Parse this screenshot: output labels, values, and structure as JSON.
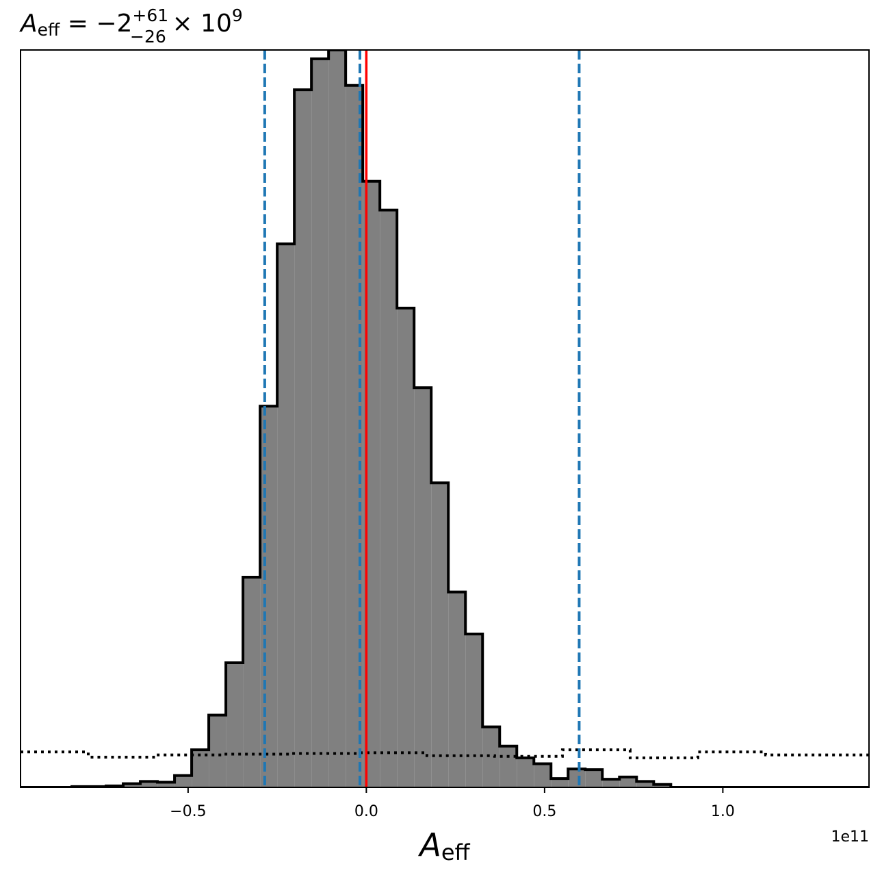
{
  "chart_data": {
    "type": "histogram",
    "title": {
      "symbol": "A",
      "symbol_sub": "eff",
      "equals": " = ",
      "value": "−2",
      "upper": "+61",
      "lower": "−26",
      "times": " × 10",
      "exponent": "9"
    },
    "xlabel": {
      "symbol": "A",
      "sub": "eff"
    },
    "x_offset_text": "1e11",
    "x_scale": 100000000000.0,
    "xlim": [
      -0.97,
      1.41
    ],
    "ylim": [
      0,
      1.0
    ],
    "x_ticks": [
      {
        "value": -0.5,
        "label": "−0.5"
      },
      {
        "value": 0.0,
        "label": "0.0"
      },
      {
        "value": 0.5,
        "label": "0.5"
      },
      {
        "value": 1.0,
        "label": "1.0"
      }
    ],
    "y_ticks_visible": false,
    "grid": false,
    "posterior": {
      "name": "posterior",
      "fill": "#808080",
      "edge": "#000000",
      "bin_edges": [
        -0.97,
        -0.922,
        -0.874,
        -0.826,
        -0.778,
        -0.73,
        -0.682,
        -0.634,
        -0.586,
        -0.538,
        -0.49,
        -0.442,
        -0.394,
        -0.346,
        -0.298,
        -0.25,
        -0.202,
        -0.154,
        -0.106,
        -0.058,
        -0.01,
        0.038,
        0.086,
        0.134,
        0.182,
        0.23,
        0.278,
        0.326,
        0.374,
        0.422,
        0.47,
        0.518,
        0.566,
        0.614,
        0.662,
        0.71,
        0.758,
        0.806,
        0.854,
        0.902,
        0.95,
        0.998,
        1.046,
        1.094,
        1.142,
        1.19,
        1.238,
        1.286,
        1.334,
        1.41
      ],
      "values": [
        0.0,
        0.0,
        0.0,
        0.001,
        0.001,
        0.002,
        0.005,
        0.008,
        0.007,
        0.016,
        0.051,
        0.098,
        0.169,
        0.285,
        0.517,
        0.737,
        0.946,
        0.988,
        1.0,
        0.952,
        0.822,
        0.783,
        0.65,
        0.542,
        0.413,
        0.265,
        0.208,
        0.082,
        0.056,
        0.04,
        0.032,
        0.012,
        0.025,
        0.024,
        0.011,
        0.014,
        0.008,
        0.004,
        0.0,
        0.0,
        0.0,
        0.0,
        0.0,
        0.0,
        0.0,
        0.0,
        0.0,
        0.0,
        0.0
      ]
    },
    "prior": {
      "name": "prior",
      "style": "dotted",
      "color": "#000000",
      "bin_edges": [
        -0.97,
        -0.78,
        -0.59,
        -0.4,
        -0.21,
        -0.02,
        0.17,
        0.36,
        0.55,
        0.74,
        0.93,
        1.12,
        1.41
      ],
      "values": [
        0.048,
        0.041,
        0.044,
        0.045,
        0.046,
        0.047,
        0.043,
        0.042,
        0.051,
        0.04,
        0.048,
        0.044
      ]
    },
    "quantile_lines": {
      "color": "#1f77b4",
      "style": "dashed",
      "values": [
        -0.285,
        -0.018,
        0.597
      ]
    },
    "truth_line": {
      "color": "#ff0000",
      "value": 0.0
    }
  }
}
